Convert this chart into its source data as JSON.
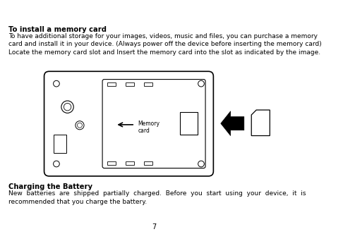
{
  "title": "To install a memory card",
  "body1": "To have additional storage for your images, videos, music and files, you can purchase a memory\ncard and install it in your device. (Always power off the device before inserting the memory card)\nLocate the memory card slot and Insert the memory card into the slot as indicated by the image.",
  "section2_title": "Charging the Battery",
  "section2_body": "New  batteries  are  shipped  partially  charged.  Before  you  start  using  your  device,  it  is\nrecommended that you charge the battery.",
  "page_number": "7",
  "bg_color": "#ffffff",
  "text_color": "#000000",
  "memory_card_label": "Memory\ncard"
}
